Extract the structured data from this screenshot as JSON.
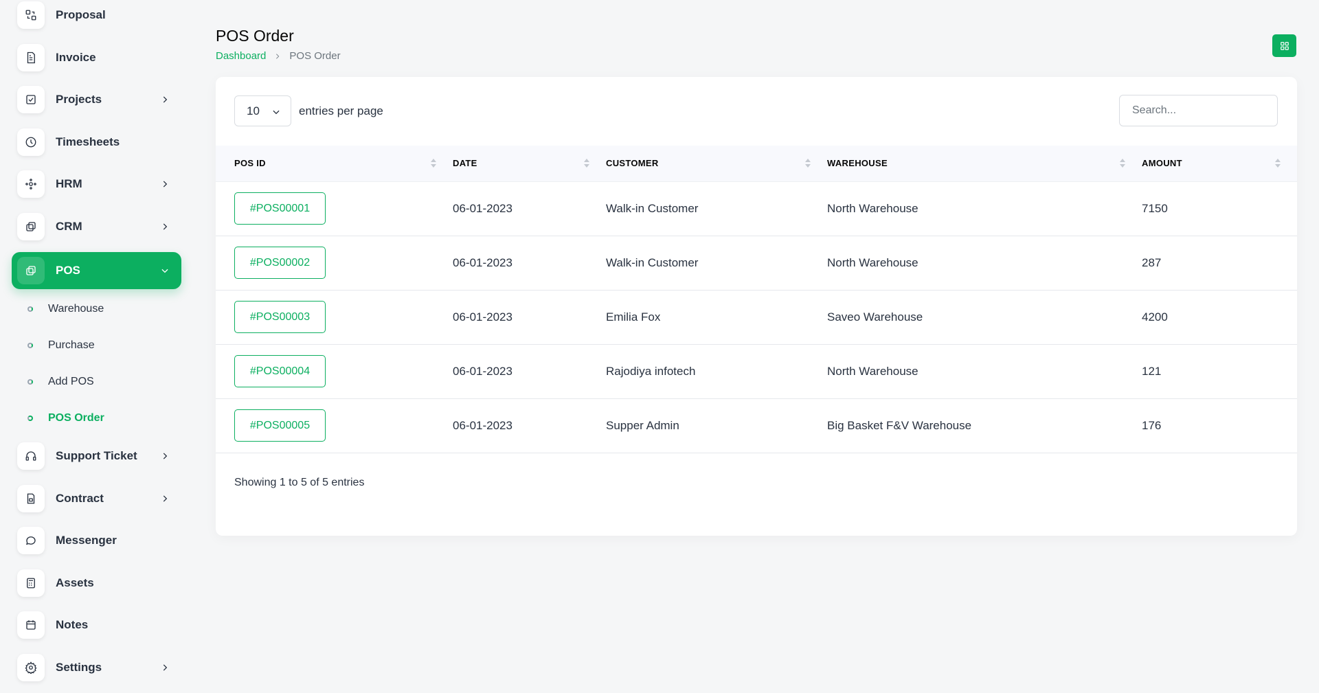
{
  "sidebar": {
    "items": [
      {
        "label": "Proposal",
        "icon": "proposal-icon"
      },
      {
        "label": "Invoice",
        "icon": "invoice-icon"
      },
      {
        "label": "Projects",
        "icon": "projects-icon"
      },
      {
        "label": "Timesheets",
        "icon": "clock-icon"
      },
      {
        "label": "HRM",
        "icon": "hrm-icon"
      },
      {
        "label": "CRM",
        "icon": "crm-icon"
      },
      {
        "label": "POS",
        "icon": "pos-icon"
      },
      {
        "label": "Support Ticket",
        "icon": "headphones-icon"
      },
      {
        "label": "Contract",
        "icon": "contract-icon"
      },
      {
        "label": "Messenger",
        "icon": "chat-icon"
      },
      {
        "label": "Assets",
        "icon": "calculator-icon"
      },
      {
        "label": "Notes",
        "icon": "calendar-icon"
      },
      {
        "label": "Settings",
        "icon": "gear-icon"
      }
    ],
    "pos_submenu": [
      "Warehouse",
      "Purchase",
      "Add POS",
      "POS Order"
    ]
  },
  "header": {
    "title": "POS Order",
    "breadcrumb": {
      "home": "Dashboard",
      "current": "POS Order"
    }
  },
  "table_controls": {
    "per_page_value": "10",
    "per_page_label": "entries per page",
    "search_placeholder": "Search..."
  },
  "table": {
    "columns": [
      "POS ID",
      "DATE",
      "CUSTOMER",
      "WAREHOUSE",
      "AMOUNT"
    ],
    "rows": [
      {
        "pos_id": "#POS00001",
        "date": "06-01-2023",
        "customer": "Walk-in Customer",
        "warehouse": "North Warehouse",
        "amount": "7150"
      },
      {
        "pos_id": "#POS00002",
        "date": "06-01-2023",
        "customer": "Walk-in Customer",
        "warehouse": "North Warehouse",
        "amount": "287"
      },
      {
        "pos_id": "#POS00003",
        "date": "06-01-2023",
        "customer": "Emilia Fox",
        "warehouse": "Saveo Warehouse",
        "amount": "4200"
      },
      {
        "pos_id": "#POS00004",
        "date": "06-01-2023",
        "customer": "Rajodiya infotech",
        "warehouse": "North Warehouse",
        "amount": "121"
      },
      {
        "pos_id": "#POS00005",
        "date": "06-01-2023",
        "customer": "Supper Admin",
        "warehouse": "Big Basket F&V Warehouse",
        "amount": "176"
      }
    ]
  },
  "footer": {
    "showing": "Showing 1 to 5 of 5 entries"
  },
  "colors": {
    "accent": "#0caf60",
    "text": "#293240",
    "background": "#f5f6f7"
  }
}
